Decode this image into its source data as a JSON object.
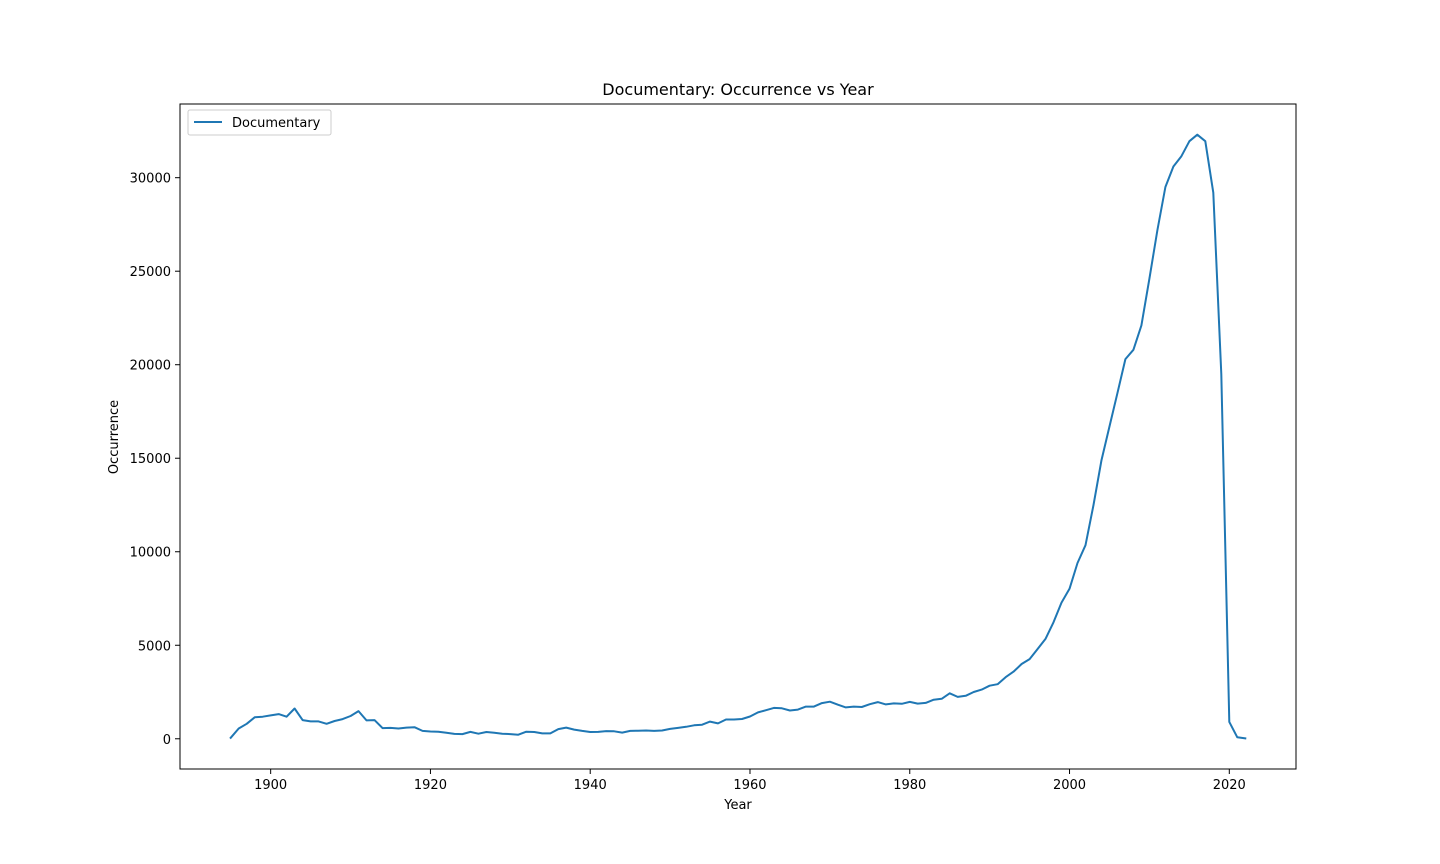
{
  "chart_data": {
    "type": "line",
    "title": "Documentary: Occurrence vs Year",
    "xlabel": "Year",
    "ylabel": "Occurrence",
    "xlim": [
      1888.65,
      2028.35
    ],
    "ylim": [
      -1616,
      33940
    ],
    "xticks": [
      1900,
      1920,
      1940,
      1960,
      1980,
      2000,
      2020
    ],
    "yticks": [
      0,
      5000,
      10000,
      15000,
      20000,
      25000,
      30000
    ],
    "grid": false,
    "legend_position": "upper-left",
    "line_color": "#1f77b4",
    "series": [
      {
        "name": "Documentary",
        "x": [
          1895,
          1896,
          1897,
          1898,
          1899,
          1900,
          1901,
          1902,
          1903,
          1904,
          1905,
          1906,
          1907,
          1908,
          1909,
          1910,
          1911,
          1912,
          1913,
          1914,
          1915,
          1916,
          1917,
          1918,
          1919,
          1920,
          1921,
          1922,
          1923,
          1924,
          1925,
          1926,
          1927,
          1928,
          1929,
          1930,
          1931,
          1932,
          1933,
          1934,
          1935,
          1936,
          1937,
          1938,
          1939,
          1940,
          1941,
          1942,
          1943,
          1944,
          1945,
          1946,
          1947,
          1948,
          1949,
          1950,
          1951,
          1952,
          1953,
          1954,
          1955,
          1956,
          1957,
          1958,
          1959,
          1960,
          1961,
          1962,
          1963,
          1964,
          1965,
          1966,
          1967,
          1968,
          1969,
          1970,
          1971,
          1972,
          1973,
          1974,
          1975,
          1976,
          1977,
          1978,
          1979,
          1980,
          1981,
          1982,
          1983,
          1984,
          1985,
          1986,
          1987,
          1988,
          1989,
          1990,
          1991,
          1992,
          1993,
          1994,
          1995,
          1996,
          1997,
          1998,
          1999,
          2000,
          2001,
          2002,
          2003,
          2004,
          2005,
          2006,
          2007,
          2008,
          2009,
          2010,
          2011,
          2012,
          2013,
          2014,
          2015,
          2016,
          2017,
          2018,
          2019,
          2020,
          2021,
          2022
        ],
        "y": [
          50,
          550,
          800,
          1150,
          1180,
          1250,
          1320,
          1180,
          1620,
          1000,
          930,
          930,
          800,
          950,
          1050,
          1220,
          1480,
          980,
          1000,
          570,
          580,
          550,
          600,
          620,
          420,
          390,
          380,
          320,
          260,
          250,
          370,
          270,
          360,
          320,
          270,
          250,
          220,
          380,
          360,
          290,
          290,
          520,
          600,
          490,
          420,
          360,
          370,
          410,
          400,
          330,
          420,
          430,
          440,
          420,
          440,
          530,
          580,
          640,
          720,
          750,
          920,
          820,
          1030,
          1030,
          1060,
          1190,
          1410,
          1530,
          1650,
          1630,
          1510,
          1560,
          1720,
          1720,
          1910,
          1980,
          1820,
          1680,
          1720,
          1700,
          1850,
          1960,
          1840,
          1890,
          1870,
          1970,
          1880,
          1920,
          2090,
          2140,
          2430,
          2240,
          2300,
          2500,
          2630,
          2840,
          2920,
          3290,
          3590,
          4000,
          4260,
          4800,
          5350,
          6230,
          7280,
          8020,
          9400,
          10350,
          12500,
          14900,
          16700,
          18500,
          20300,
          20800,
          22100,
          24600,
          27200,
          29500,
          30600,
          31150,
          31950,
          32300,
          31950,
          29200,
          19500,
          900,
          80,
          20
        ]
      }
    ]
  }
}
